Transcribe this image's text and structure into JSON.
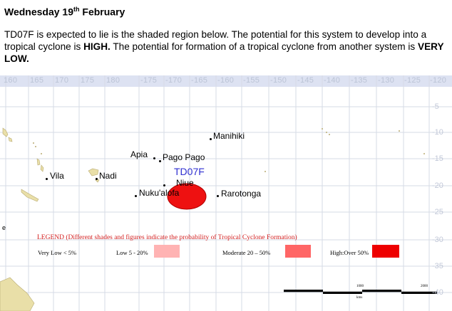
{
  "header": {
    "date": "Wednesday 19",
    "date_sup": "th",
    "month": " February"
  },
  "body": {
    "text1": "TD07F is expected to lie is the shaded region below. The potential for this system to develop into a tropical cyclone is ",
    "bold1": "HIGH.",
    "text2": " The potential for formation of a tropical cyclone from another system is ",
    "bold2": "VERY LOW."
  },
  "map": {
    "longitudes": [
      "160",
      "165",
      "170",
      "175",
      "180",
      "-175",
      "-170",
      "-165",
      "-160",
      "-155",
      "-150",
      "-145",
      "-140",
      "-135",
      "-130",
      "-125",
      "-120"
    ],
    "latitudes": [
      "-5",
      "-10",
      "-15",
      "-20",
      "-25",
      "-30",
      "-35",
      "-40"
    ],
    "places": {
      "manihiki": "Manihiki",
      "apia": "Apia",
      "pago_pago": "Pago Pago",
      "vila": "Vila",
      "nadi": "Nadi",
      "niue": "Niue",
      "nukualofa": "Nuku'alofa",
      "rarotonga": "Rarotonga"
    },
    "system_label": "TD07F",
    "scale_label_1": "1000",
    "scale_label_2": "2000",
    "scale_label_3": "kms",
    "edge_mark": "e"
  },
  "legend": {
    "title": "LEGEND (Different shades and figures indicate the probability of Tropical Cyclone Formation)",
    "very_low": "Very Low < 5%",
    "low": "Low 5 - 20%",
    "moderate": "Moderate 20 – 50%",
    "high": "High:Over 50%",
    "colors": {
      "low": "#ffb3b3",
      "moderate": "#ff6666",
      "high": "#ee0000",
      "title": "#d42020",
      "system_area": "#ee1111"
    }
  }
}
